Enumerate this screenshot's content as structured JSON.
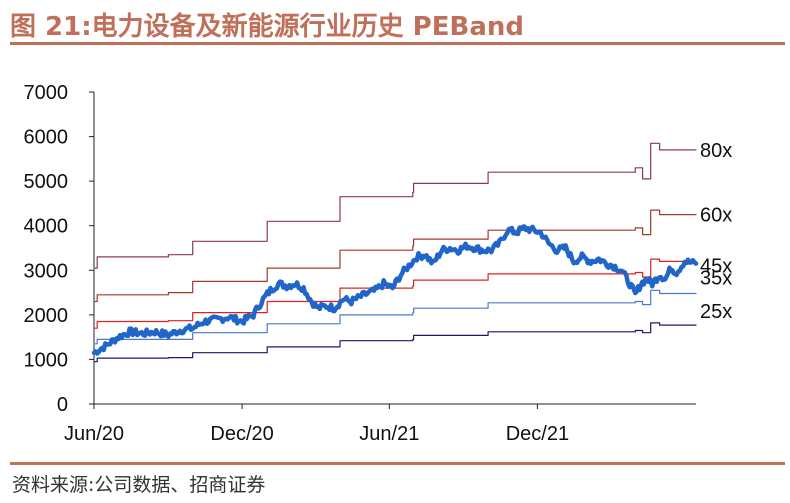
{
  "header": {
    "title": "图 21:电力设备及新能源行业历史 PEBand"
  },
  "footer": {
    "source": "资料来源:公司数据、招商证券"
  },
  "chart_data": {
    "type": "line",
    "title": "图 21:电力设备及新能源行业历史 PEBand",
    "xlabel": "",
    "ylabel": "",
    "xlim": [
      "2020-06-01",
      "2022-06-15"
    ],
    "ylim": [
      0,
      7000
    ],
    "yticks": [
      0,
      1000,
      2000,
      3000,
      4000,
      5000,
      6000,
      7000
    ],
    "xticks": [
      {
        "date": "2020-06-01",
        "label": "Jun/20"
      },
      {
        "date": "2020-12-01",
        "label": "Dec/20"
      },
      {
        "date": "2021-06-01",
        "label": "Jun/21"
      },
      {
        "date": "2021-12-01",
        "label": "Dec/21"
      }
    ],
    "grid": false,
    "legend": "none",
    "series": [
      {
        "name": "80x",
        "color": "#8b3a55",
        "step": true,
        "points": [
          [
            "2020-06-01",
            3050
          ],
          [
            "2020-06-05",
            3300
          ],
          [
            "2020-09-01",
            3350
          ],
          [
            "2020-10-01",
            3650
          ],
          [
            "2020-12-01",
            3650
          ],
          [
            "2021-01-01",
            4100
          ],
          [
            "2021-03-31",
            4100
          ],
          [
            "2021-04-01",
            4650
          ],
          [
            "2021-06-30",
            4750
          ],
          [
            "2021-07-01",
            4950
          ],
          [
            "2021-09-30",
            4950
          ],
          [
            "2021-10-01",
            5200
          ],
          [
            "2022-03-20",
            5200
          ],
          [
            "2022-04-01",
            5300
          ],
          [
            "2022-04-10",
            5050
          ],
          [
            "2022-04-20",
            5850
          ],
          [
            "2022-05-01",
            5700
          ],
          [
            "2022-06-15",
            5700
          ]
        ]
      },
      {
        "name": "60x",
        "color": "#a03a28",
        "step": true,
        "points": [
          [
            "2020-06-01",
            2300
          ],
          [
            "2020-06-05",
            2450
          ],
          [
            "2020-09-01",
            2500
          ],
          [
            "2020-10-01",
            2750
          ],
          [
            "2020-12-01",
            2750
          ],
          [
            "2021-01-01",
            3050
          ],
          [
            "2021-03-31",
            3050
          ],
          [
            "2021-04-01",
            3450
          ],
          [
            "2021-06-30",
            3550
          ],
          [
            "2021-07-01",
            3700
          ],
          [
            "2021-09-30",
            3700
          ],
          [
            "2021-10-01",
            3900
          ],
          [
            "2022-03-20",
            3900
          ],
          [
            "2022-04-01",
            3950
          ],
          [
            "2022-04-10",
            3800
          ],
          [
            "2022-04-20",
            4350
          ],
          [
            "2022-05-01",
            4250
          ],
          [
            "2022-06-15",
            4250
          ]
        ]
      },
      {
        "name": "45x",
        "color": "#e02020",
        "step": true,
        "points": [
          [
            "2020-06-01",
            1700
          ],
          [
            "2020-06-05",
            1850
          ],
          [
            "2020-09-01",
            1870
          ],
          [
            "2020-10-01",
            2050
          ],
          [
            "2020-12-01",
            2050
          ],
          [
            "2021-01-01",
            2300
          ],
          [
            "2021-03-31",
            2300
          ],
          [
            "2021-04-01",
            2600
          ],
          [
            "2021-06-30",
            2650
          ],
          [
            "2021-07-01",
            2780
          ],
          [
            "2021-09-30",
            2780
          ],
          [
            "2021-10-01",
            2920
          ],
          [
            "2022-03-20",
            2920
          ],
          [
            "2022-04-01",
            2950
          ],
          [
            "2022-04-10",
            2850
          ],
          [
            "2022-04-20",
            3250
          ],
          [
            "2022-05-01",
            3200
          ],
          [
            "2022-06-15",
            3200
          ]
        ]
      },
      {
        "name": "35x",
        "color": "#4a78d0",
        "step": true,
        "points": [
          [
            "2020-06-01",
            1350
          ],
          [
            "2020-06-05",
            1450
          ],
          [
            "2020-09-01",
            1450
          ],
          [
            "2020-10-01",
            1600
          ],
          [
            "2020-12-01",
            1600
          ],
          [
            "2021-01-01",
            1800
          ],
          [
            "2021-03-31",
            1800
          ],
          [
            "2021-04-01",
            2000
          ],
          [
            "2021-06-30",
            2050
          ],
          [
            "2021-07-01",
            2150
          ],
          [
            "2021-09-30",
            2150
          ],
          [
            "2021-10-01",
            2270
          ],
          [
            "2022-03-20",
            2270
          ],
          [
            "2022-04-01",
            2300
          ],
          [
            "2022-04-10",
            2230
          ],
          [
            "2022-04-20",
            2550
          ],
          [
            "2022-05-01",
            2480
          ],
          [
            "2022-06-15",
            2480
          ]
        ]
      },
      {
        "name": "25x",
        "color": "#1a1a6a",
        "step": true,
        "points": [
          [
            "2020-06-01",
            950
          ],
          [
            "2020-06-05",
            1030
          ],
          [
            "2020-09-01",
            1040
          ],
          [
            "2020-10-01",
            1150
          ],
          [
            "2020-12-01",
            1150
          ],
          [
            "2021-01-01",
            1280
          ],
          [
            "2021-03-31",
            1280
          ],
          [
            "2021-04-01",
            1420
          ],
          [
            "2021-06-30",
            1450
          ],
          [
            "2021-07-01",
            1540
          ],
          [
            "2021-09-30",
            1540
          ],
          [
            "2021-10-01",
            1620
          ],
          [
            "2022-03-20",
            1620
          ],
          [
            "2022-04-01",
            1650
          ],
          [
            "2022-04-10",
            1600
          ],
          [
            "2022-04-20",
            1820
          ],
          [
            "2022-05-01",
            1770
          ],
          [
            "2022-06-15",
            1770
          ]
        ]
      },
      {
        "name": "",
        "color": "#1f66c8",
        "width": 4.5,
        "jitter": true,
        "points": [
          [
            "2020-06-01",
            1150
          ],
          [
            "2020-06-15",
            1300
          ],
          [
            "2020-07-01",
            1500
          ],
          [
            "2020-07-15",
            1620
          ],
          [
            "2020-08-01",
            1580
          ],
          [
            "2020-08-15",
            1620
          ],
          [
            "2020-09-01",
            1550
          ],
          [
            "2020-09-15",
            1650
          ],
          [
            "2020-10-01",
            1700
          ],
          [
            "2020-10-15",
            1850
          ],
          [
            "2020-11-01",
            1900
          ],
          [
            "2020-11-15",
            1950
          ],
          [
            "2020-12-01",
            1850
          ],
          [
            "2020-12-15",
            2000
          ],
          [
            "2020-12-25",
            2300
          ],
          [
            "2021-01-05",
            2550
          ],
          [
            "2021-01-15",
            2700
          ],
          [
            "2021-01-25",
            2650
          ],
          [
            "2021-02-05",
            2700
          ],
          [
            "2021-02-15",
            2600
          ],
          [
            "2021-02-25",
            2300
          ],
          [
            "2021-03-05",
            2150
          ],
          [
            "2021-03-15",
            2200
          ],
          [
            "2021-03-25",
            2150
          ],
          [
            "2021-04-05",
            2350
          ],
          [
            "2021-04-15",
            2300
          ],
          [
            "2021-05-01",
            2450
          ],
          [
            "2021-05-15",
            2550
          ],
          [
            "2021-05-25",
            2700
          ],
          [
            "2021-06-05",
            2600
          ],
          [
            "2021-06-15",
            2900
          ],
          [
            "2021-06-25",
            3100
          ],
          [
            "2021-07-05",
            3300
          ],
          [
            "2021-07-15",
            3350
          ],
          [
            "2021-07-25",
            3150
          ],
          [
            "2021-08-05",
            3450
          ],
          [
            "2021-08-15",
            3500
          ],
          [
            "2021-08-25",
            3450
          ],
          [
            "2021-09-05",
            3550
          ],
          [
            "2021-09-15",
            3500
          ],
          [
            "2021-09-25",
            3450
          ],
          [
            "2021-10-05",
            3450
          ],
          [
            "2021-10-15",
            3600
          ],
          [
            "2021-10-25",
            3900
          ],
          [
            "2021-11-05",
            3850
          ],
          [
            "2021-11-15",
            3950
          ],
          [
            "2021-11-25",
            3900
          ],
          [
            "2021-12-05",
            3850
          ],
          [
            "2021-12-15",
            3600
          ],
          [
            "2021-12-25",
            3450
          ],
          [
            "2022-01-05",
            3500
          ],
          [
            "2022-01-15",
            3200
          ],
          [
            "2022-01-25",
            3300
          ],
          [
            "2022-02-05",
            3200
          ],
          [
            "2022-02-15",
            3250
          ],
          [
            "2022-02-25",
            3150
          ],
          [
            "2022-03-05",
            3100
          ],
          [
            "2022-03-15",
            3000
          ],
          [
            "2022-03-25",
            2700
          ],
          [
            "2022-04-01",
            2450
          ],
          [
            "2022-04-08",
            2700
          ],
          [
            "2022-04-15",
            2800
          ],
          [
            "2022-04-22",
            2700
          ],
          [
            "2022-05-01",
            2900
          ],
          [
            "2022-05-08",
            2800
          ],
          [
            "2022-05-15",
            3050
          ],
          [
            "2022-05-22",
            2950
          ],
          [
            "2022-06-01",
            3200
          ],
          [
            "2022-06-15",
            3150
          ]
        ]
      }
    ]
  }
}
